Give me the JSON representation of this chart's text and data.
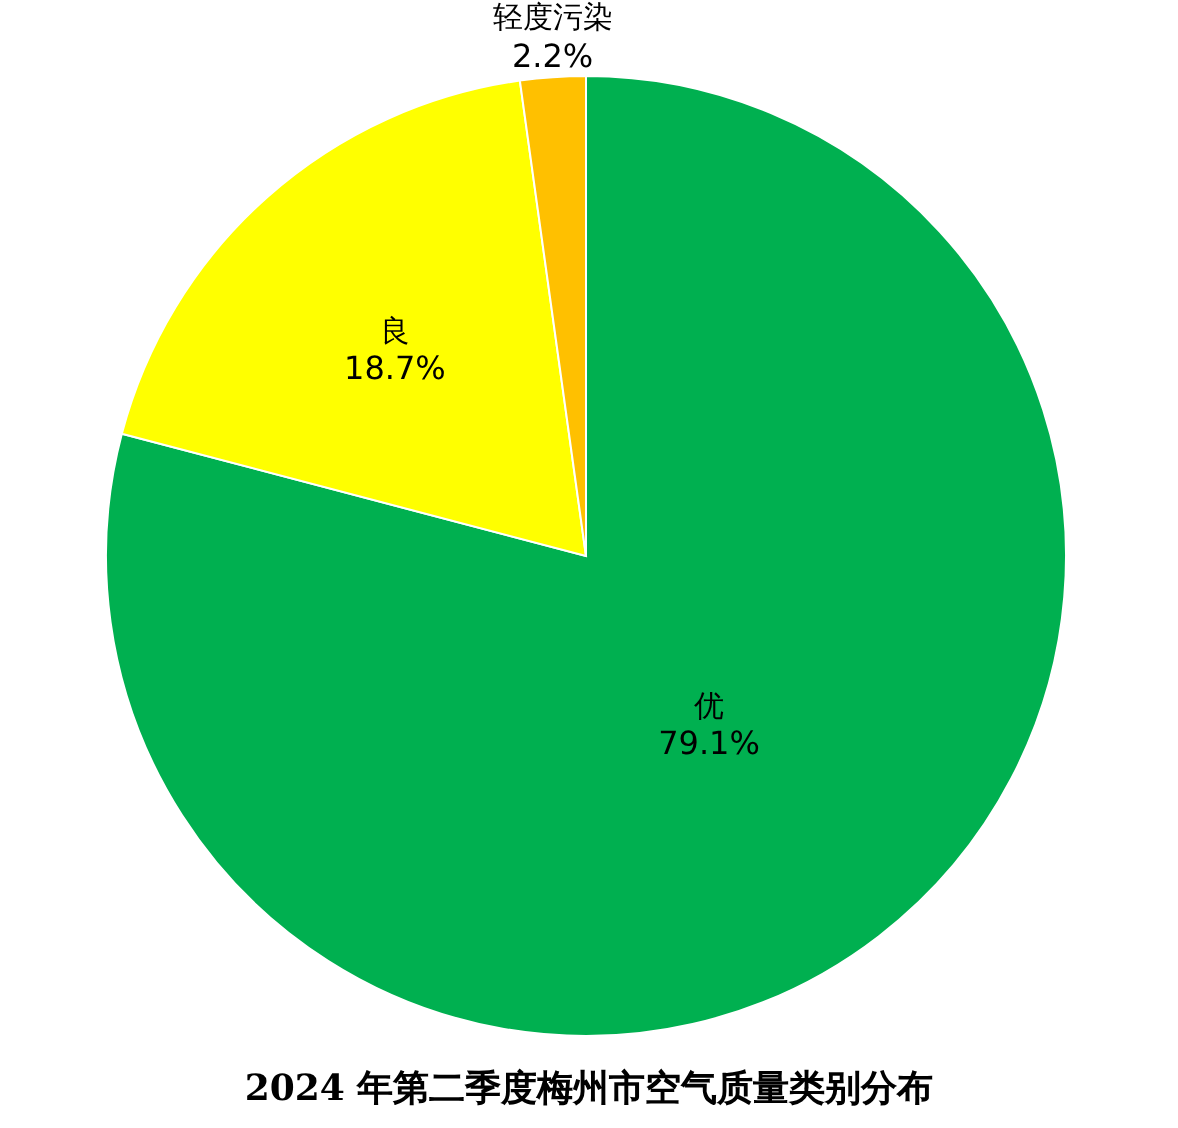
{
  "chart_data": {
    "type": "pie",
    "title": "2024 年第二季度梅州市空气质量类别分布",
    "categories": [
      "优",
      "良",
      "轻度污染"
    ],
    "values": [
      79.1,
      18.7,
      2.2
    ],
    "colors": [
      "#00b050",
      "#ffff00",
      "#ffc000"
    ],
    "value_labels": [
      "79.1%",
      "18.7%",
      "2.2%"
    ]
  }
}
